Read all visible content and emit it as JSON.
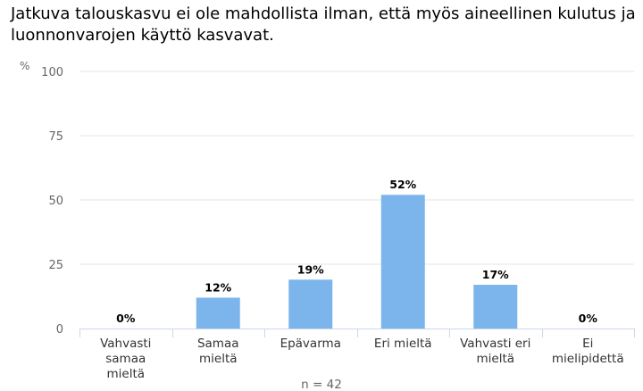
{
  "chart_data": {
    "type": "bar",
    "title": "Jatkuva talouskasvu ei ole mahdollista ilman, että myös aineellinen kulutus ja luonnonvarojen käyttö kasvavat.",
    "ylabel": "%",
    "ylim": [
      0,
      100
    ],
    "yticks": [
      0,
      25,
      50,
      75,
      100
    ],
    "categories": [
      [
        "Vahvasti",
        "samaa",
        "mieltä"
      ],
      [
        "Samaa",
        "mieltä"
      ],
      [
        "Epävarma"
      ],
      [
        "Eri mieltä"
      ],
      [
        "Vahvasti eri",
        "mieltä"
      ],
      [
        "Ei",
        "mielipidettä"
      ]
    ],
    "values": [
      0,
      12,
      19,
      52,
      17,
      0
    ],
    "data_labels": [
      "0%",
      "12%",
      "19%",
      "52%",
      "17%",
      "0%"
    ],
    "bar_color": "#7cb5ec",
    "note": "n = 42",
    "grid": true,
    "legend": "none"
  }
}
